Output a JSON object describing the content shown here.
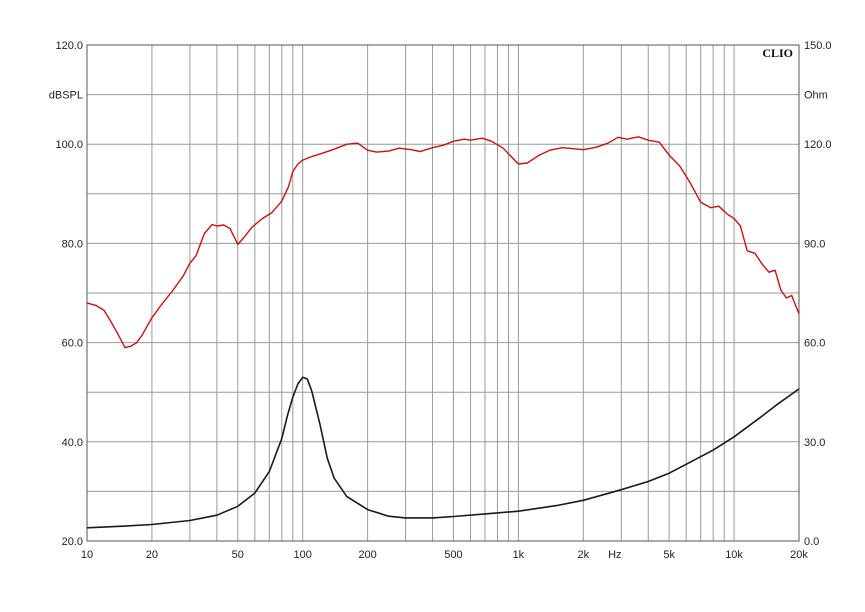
{
  "chart_data": {
    "type": "line",
    "brand": "CLIO",
    "x_scale": "log",
    "xlim": [
      10,
      20000
    ],
    "x_tick_labels": [
      "10",
      "20",
      "50",
      "100",
      "200",
      "500",
      "1k",
      "2k",
      "5k",
      "10k",
      "20k"
    ],
    "x_unit": "Hz",
    "left_axis": {
      "unit": "dBSPL",
      "ylim": [
        20,
        120
      ],
      "tick_labels": [
        "20.0",
        "40.0",
        "60.0",
        "80.0",
        "100.0",
        "120.0"
      ]
    },
    "right_axis": {
      "unit": "Ohm",
      "ylim": [
        0,
        150
      ],
      "tick_labels": [
        "0.0",
        "30.0",
        "60.0",
        "90.0",
        "120.0",
        "150.0"
      ]
    },
    "grid": true,
    "series": [
      {
        "axis": "left",
        "color": "#d01010",
        "points": [
          [
            10,
            68
          ],
          [
            11,
            67.5
          ],
          [
            12,
            66.5
          ],
          [
            13,
            64
          ],
          [
            14,
            61.5
          ],
          [
            15,
            59
          ],
          [
            16,
            59.3
          ],
          [
            17,
            60
          ],
          [
            18,
            61.5
          ],
          [
            20,
            65
          ],
          [
            22,
            67.5
          ],
          [
            25,
            70.5
          ],
          [
            28,
            73.5
          ],
          [
            30,
            76
          ],
          [
            32,
            77.5
          ],
          [
            35,
            82
          ],
          [
            38,
            83.8
          ],
          [
            40,
            83.5
          ],
          [
            43,
            83.7
          ],
          [
            46,
            83
          ],
          [
            50,
            79.8
          ],
          [
            53,
            81
          ],
          [
            58,
            83.2
          ],
          [
            65,
            85
          ],
          [
            72,
            86.2
          ],
          [
            80,
            88.5
          ],
          [
            86,
            91.5
          ],
          [
            90,
            94.5
          ],
          [
            95,
            96
          ],
          [
            100,
            96.8
          ],
          [
            110,
            97.5
          ],
          [
            120,
            98
          ],
          [
            140,
            99
          ],
          [
            160,
            100
          ],
          [
            180,
            100.2
          ],
          [
            200,
            98.8
          ],
          [
            220,
            98.4
          ],
          [
            250,
            98.6
          ],
          [
            280,
            99.2
          ],
          [
            320,
            98.9
          ],
          [
            350,
            98.5
          ],
          [
            400,
            99.3
          ],
          [
            450,
            99.8
          ],
          [
            500,
            100.6
          ],
          [
            560,
            101
          ],
          [
            600,
            100.8
          ],
          [
            680,
            101.2
          ],
          [
            750,
            100.6
          ],
          [
            850,
            99.2
          ],
          [
            950,
            97
          ],
          [
            1000,
            96
          ],
          [
            1100,
            96.2
          ],
          [
            1250,
            97.8
          ],
          [
            1400,
            98.8
          ],
          [
            1600,
            99.3
          ],
          [
            1800,
            99.1
          ],
          [
            2000,
            98.9
          ],
          [
            2300,
            99.4
          ],
          [
            2600,
            100.2
          ],
          [
            2900,
            101.4
          ],
          [
            3200,
            101
          ],
          [
            3600,
            101.5
          ],
          [
            4000,
            100.8
          ],
          [
            4500,
            100.4
          ],
          [
            5000,
            97.8
          ],
          [
            5600,
            95.6
          ],
          [
            6300,
            92
          ],
          [
            7000,
            88.3
          ],
          [
            7800,
            87.2
          ],
          [
            8500,
            87.5
          ],
          [
            9300,
            85.9
          ],
          [
            10000,
            85
          ],
          [
            10700,
            83.5
          ],
          [
            11500,
            78.5
          ],
          [
            12500,
            78
          ],
          [
            13500,
            75.8
          ],
          [
            14500,
            74.2
          ],
          [
            15500,
            74.6
          ],
          [
            16500,
            70.5
          ],
          [
            17500,
            69
          ],
          [
            18500,
            69.5
          ],
          [
            19500,
            67
          ],
          [
            20000,
            65.8
          ]
        ]
      },
      {
        "axis": "right",
        "color": "#1a1a1a",
        "points": [
          [
            10,
            4
          ],
          [
            15,
            4.5
          ],
          [
            20,
            5
          ],
          [
            30,
            6.2
          ],
          [
            40,
            7.8
          ],
          [
            50,
            10.5
          ],
          [
            60,
            14.5
          ],
          [
            70,
            21
          ],
          [
            80,
            31
          ],
          [
            85,
            38
          ],
          [
            90,
            43.5
          ],
          [
            95,
            47.5
          ],
          [
            100,
            49.5
          ],
          [
            105,
            49
          ],
          [
            110,
            45.5
          ],
          [
            120,
            35.5
          ],
          [
            130,
            25
          ],
          [
            140,
            19
          ],
          [
            160,
            13.5
          ],
          [
            200,
            9.5
          ],
          [
            250,
            7.5
          ],
          [
            300,
            7
          ],
          [
            400,
            7
          ],
          [
            500,
            7.4
          ],
          [
            700,
            8.2
          ],
          [
            1000,
            9
          ],
          [
            1500,
            10.7
          ],
          [
            2000,
            12.3
          ],
          [
            3000,
            15.5
          ],
          [
            4000,
            18
          ],
          [
            5000,
            20.5
          ],
          [
            6000,
            23.2
          ],
          [
            8000,
            27.5
          ],
          [
            10000,
            31.5
          ],
          [
            13000,
            37
          ],
          [
            16000,
            41.5
          ],
          [
            20000,
            46
          ]
        ]
      }
    ]
  }
}
